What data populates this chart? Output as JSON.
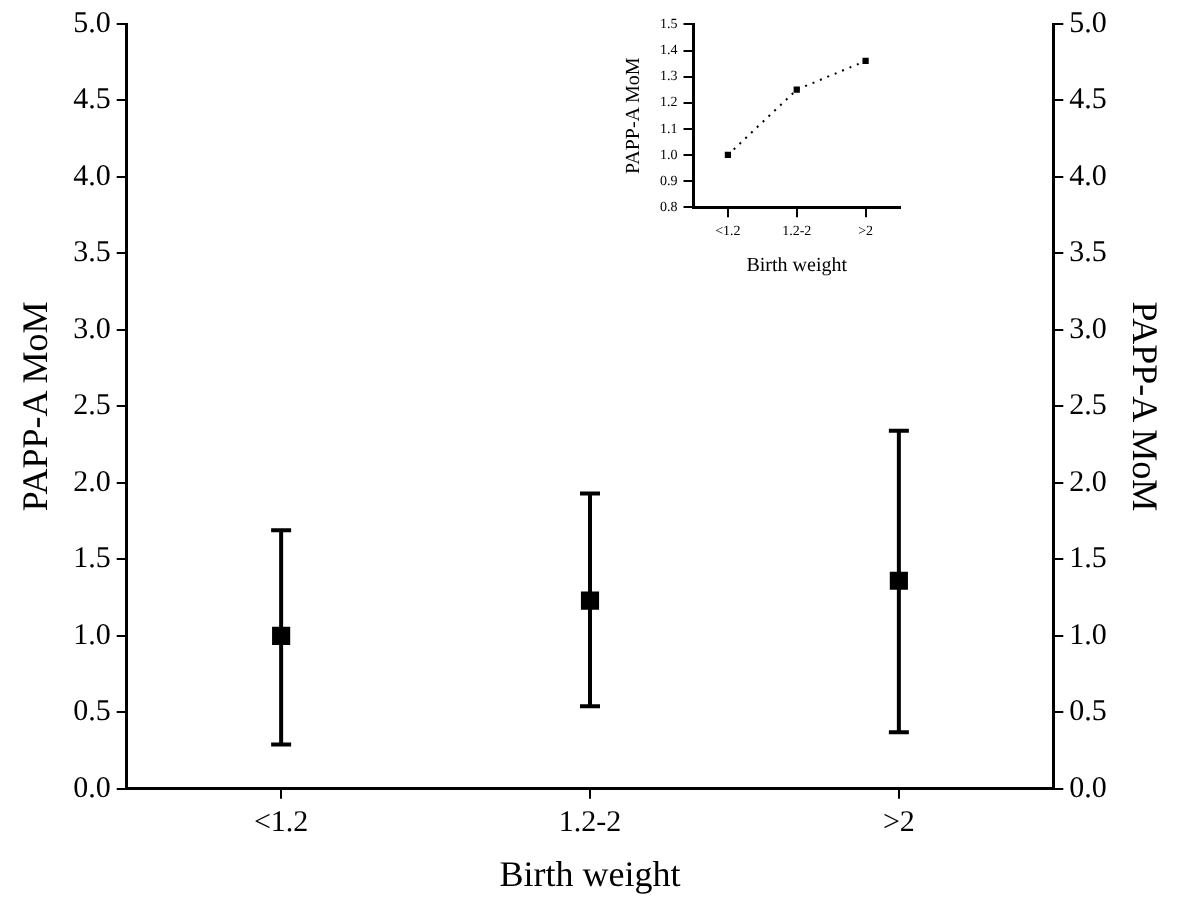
{
  "chart_data": [
    {
      "type": "scatter",
      "xlabel": "Birth weight",
      "ylabel": "PAPP-A MoM",
      "y2label": "PAPP-A MoM",
      "categories": [
        "<1.2",
        "1.2-2",
        ">2"
      ],
      "series": [
        {
          "color": "#000000",
          "values": [
            1.0,
            1.23,
            1.36
          ],
          "errors": [
            [
              0.29,
              1.69
            ],
            [
              0.54,
              1.93
            ],
            [
              0.37,
              2.34
            ]
          ]
        }
      ],
      "ylim": [
        0,
        5
      ],
      "yticks": [
        {
          "value": 0,
          "label": "0.0"
        },
        {
          "value": 0.5,
          "label": "0.5"
        },
        {
          "value": 1,
          "label": "1.0"
        },
        {
          "value": 1.5,
          "label": "1.5"
        },
        {
          "value": 2,
          "label": "2.0"
        },
        {
          "value": 2.5,
          "label": "2.5"
        },
        {
          "value": 3,
          "label": "3.0"
        },
        {
          "value": 3.5,
          "label": "3.5"
        },
        {
          "value": 4,
          "label": "4.0"
        },
        {
          "value": 4.5,
          "label": "4.5"
        },
        {
          "value": 5,
          "label": "5.0"
        }
      ],
      "y2lim": [
        0,
        5
      ],
      "y2ticks": [
        {
          "value": 0,
          "label": "0.0"
        },
        {
          "value": 0.5,
          "label": "0.5"
        },
        {
          "value": 1,
          "label": "1.0"
        },
        {
          "value": 1.5,
          "label": "1.5"
        },
        {
          "value": 2,
          "label": "2.0"
        },
        {
          "value": 2.5,
          "label": "2.5"
        },
        {
          "value": 3,
          "label": "3.0"
        },
        {
          "value": 3.5,
          "label": "3.5"
        },
        {
          "value": 4,
          "label": "4.0"
        },
        {
          "value": 4.5,
          "label": "4.5"
        },
        {
          "value": 5,
          "label": "5.0"
        }
      ],
      "marker": "square",
      "grid": false,
      "legend": false
    },
    {
      "type": "line",
      "xlabel": "Birth weight",
      "ylabel": "PAPP-A MoM",
      "categories": [
        "<1.2",
        "1.2-2",
        ">2"
      ],
      "series": [
        {
          "color": "#000000",
          "values": [
            1.0,
            1.25,
            1.36
          ]
        }
      ],
      "ylim": [
        0.8,
        1.5
      ],
      "yticks": [
        0.8,
        0.9,
        {
          "value": 1,
          "label": "1.0"
        },
        1.1,
        1.2,
        1.3,
        1.4,
        1.5
      ],
      "marker": "square",
      "line_style": "dotted",
      "grid": false,
      "legend": false
    }
  ]
}
